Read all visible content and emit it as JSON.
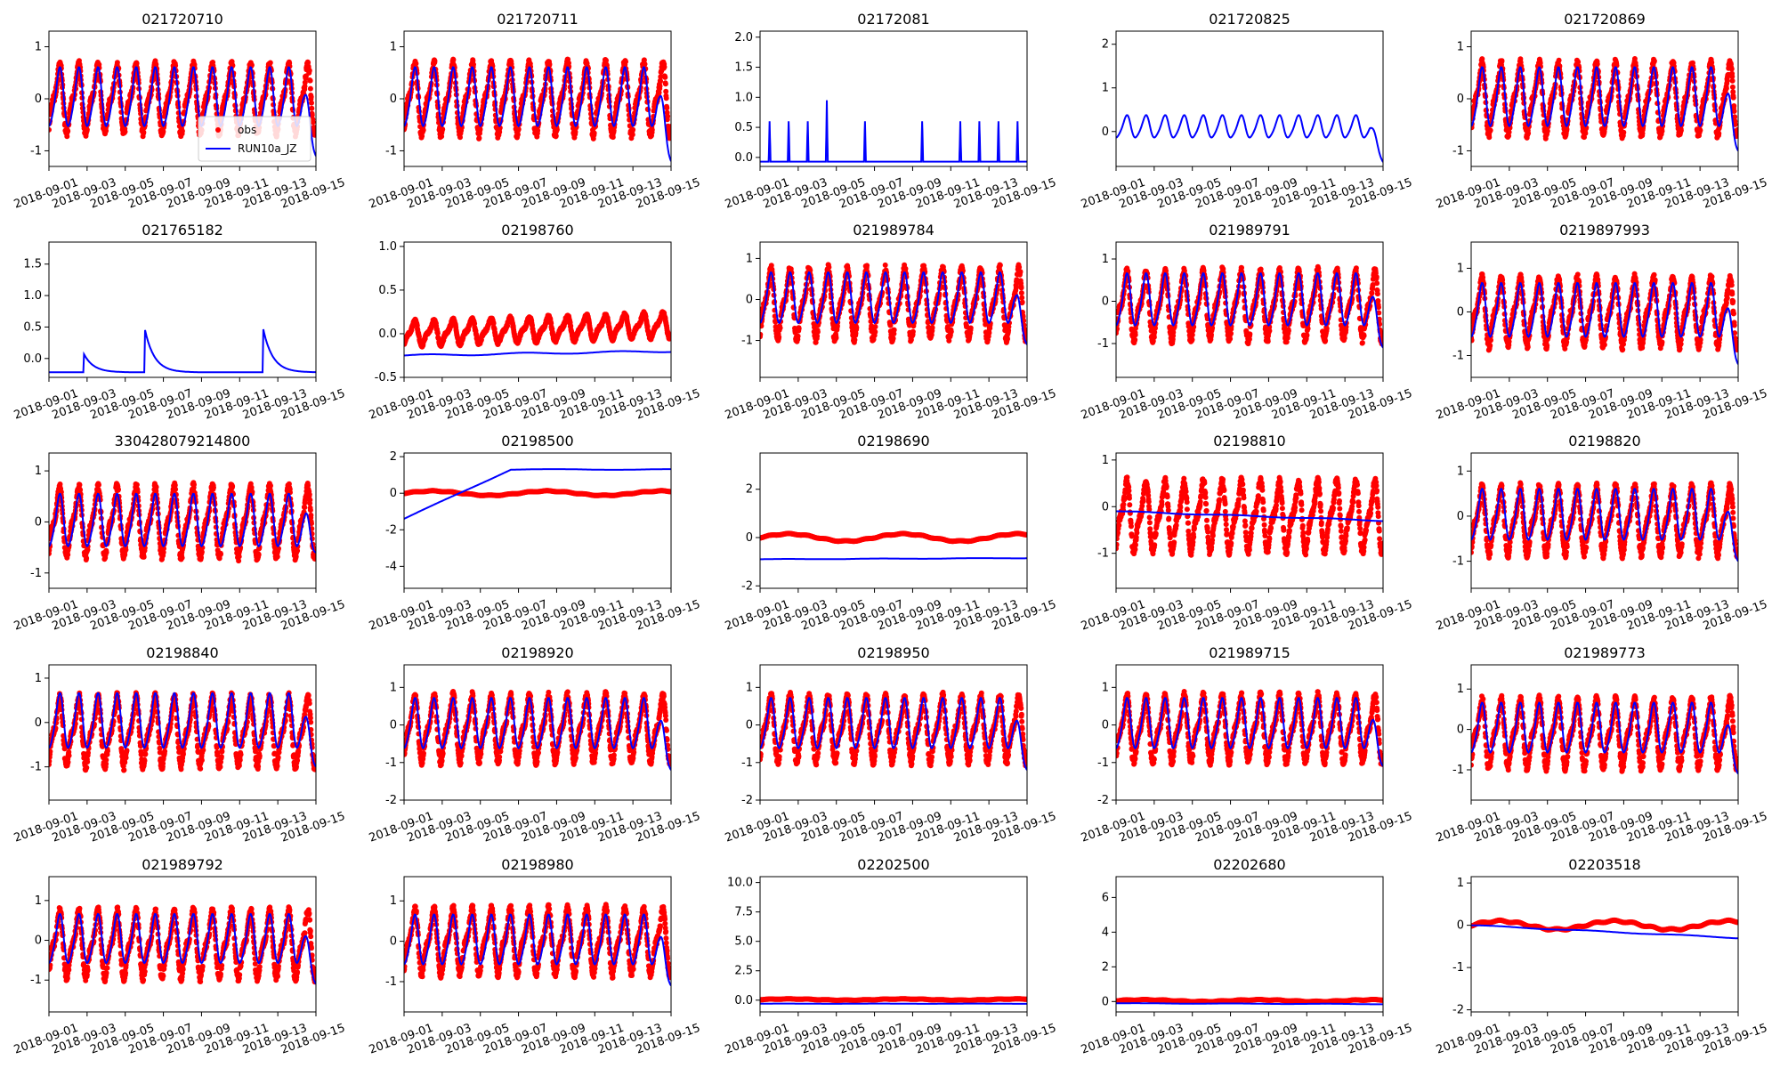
{
  "figure": {
    "x_tick_labels": [
      "2018-09-01",
      "2018-09-03",
      "2018-09-05",
      "2018-09-07",
      "2018-09-09",
      "2018-09-11",
      "2018-09-13",
      "2018-09-15"
    ],
    "x_range": [
      "2018-09-01",
      "2018-09-15"
    ],
    "series_styles": {
      "obs": {
        "color": "#ff0000",
        "kind": "dots"
      },
      "RUN10a_JZ": {
        "color": "#0000ff",
        "kind": "line"
      }
    },
    "legend": {
      "location": "lower-right",
      "in_panel": "021720710",
      "entries": [
        "obs",
        "RUN10a_JZ"
      ]
    }
  },
  "chart_data": [
    {
      "type": "line",
      "title": "021720710",
      "ylim": [
        -1.3,
        1.3
      ],
      "yticks": [
        "-1",
        "0",
        "1"
      ],
      "obs": {
        "mean": 0.0,
        "amp": 1.0,
        "pattern": "diurnal"
      },
      "model": {
        "mean": 0.0,
        "amp": 0.55,
        "end": -1.1,
        "pattern": "diurnal"
      }
    },
    {
      "type": "line",
      "title": "021720711",
      "ylim": [
        -1.3,
        1.3
      ],
      "yticks": [
        "-1",
        "0",
        "1"
      ],
      "obs": {
        "mean": 0.0,
        "amp": 1.05,
        "pattern": "diurnal"
      },
      "model": {
        "mean": 0.0,
        "amp": 0.55,
        "end": -1.2,
        "pattern": "diurnal"
      }
    },
    {
      "type": "line",
      "title": "02172081",
      "ylim": [
        -0.15,
        2.1
      ],
      "yticks": [
        "0.0",
        "0.5",
        "1.0",
        "1.5",
        "2.0"
      ],
      "obs": null,
      "model": {
        "pattern": "spikes",
        "base": -0.07,
        "peak": 0.6
      }
    },
    {
      "type": "line",
      "title": "021720825",
      "ylim": [
        -0.8,
        2.3
      ],
      "yticks": [
        "0",
        "1",
        "2"
      ],
      "obs": null,
      "model": {
        "mean": 0.1,
        "amp": 0.25,
        "end": -0.7,
        "pattern": "diurnal"
      }
    },
    {
      "type": "line",
      "title": "021720869",
      "ylim": [
        -1.3,
        1.3
      ],
      "yticks": [
        "-1",
        "0",
        "1"
      ],
      "obs": {
        "mean": 0.0,
        "amp": 1.05,
        "pattern": "diurnal"
      },
      "model": {
        "mean": 0.0,
        "amp": 0.55,
        "end": -1.0,
        "pattern": "diurnal"
      }
    },
    {
      "type": "line",
      "title": "021765182",
      "ylim": [
        -0.3,
        1.85
      ],
      "yticks": [
        "0.0",
        "0.5",
        "1.0",
        "1.5"
      ],
      "obs": null,
      "model": {
        "pattern": "recession",
        "base": -0.22,
        "peaks": [
          {
            "at": 0.13,
            "v": 0.08
          },
          {
            "at": 0.36,
            "v": 0.45
          },
          {
            "at": 0.8,
            "v": 0.52
          }
        ]
      }
    },
    {
      "type": "line",
      "title": "02198760",
      "ylim": [
        -0.5,
        1.05
      ],
      "yticks": [
        "-0.5",
        "0.0",
        "0.5",
        "1.0"
      ],
      "obs": {
        "mean": 0.0,
        "amp": 0.22,
        "trend": 0.1,
        "pattern": "diurnal"
      },
      "model": {
        "pattern": "flat",
        "start": -0.25,
        "end": -0.2
      }
    },
    {
      "type": "line",
      "title": "021989784",
      "ylim": [
        -1.9,
        1.4
      ],
      "yticks": [
        "-1",
        "0",
        "1"
      ],
      "obs": {
        "mean": -0.1,
        "amp": 1.3,
        "pattern": "diurnal"
      },
      "model": {
        "mean": 0.0,
        "amp": 0.6,
        "end": -1.1,
        "pattern": "diurnal"
      }
    },
    {
      "type": "line",
      "title": "021989791",
      "ylim": [
        -1.8,
        1.4
      ],
      "yticks": [
        "-1",
        "0",
        "1"
      ],
      "obs": {
        "mean": -0.1,
        "amp": 1.25,
        "pattern": "diurnal"
      },
      "model": {
        "mean": 0.0,
        "amp": 0.6,
        "end": -1.1,
        "pattern": "diurnal"
      }
    },
    {
      "type": "line",
      "title": "0219897993",
      "ylim": [
        -1.5,
        1.6
      ],
      "yticks": [
        "-1",
        "0",
        "1"
      ],
      "obs": {
        "mean": 0.0,
        "amp": 1.2,
        "pattern": "diurnal"
      },
      "model": {
        "mean": 0.0,
        "amp": 0.6,
        "end": -1.2,
        "pattern": "diurnal"
      }
    },
    {
      "type": "line",
      "title": "330428079214800",
      "ylim": [
        -1.3,
        1.35
      ],
      "yticks": [
        "-1",
        "0",
        "1"
      ],
      "obs": {
        "mean": 0.0,
        "amp": 1.05,
        "pattern": "diurnal"
      },
      "model": {
        "mean": 0.0,
        "amp": 0.5,
        "end": -0.6,
        "pattern": "diurnal"
      }
    },
    {
      "type": "line",
      "title": "02198500",
      "ylim": [
        -5.2,
        2.2
      ],
      "yticks": [
        "-4",
        "-2",
        "0",
        "2"
      ],
      "obs": {
        "pattern": "smooth",
        "mean": 0.0,
        "amp": 0.12
      },
      "model": {
        "pattern": "rise",
        "start": -1.4,
        "end": 1.3
      }
    },
    {
      "type": "line",
      "title": "02198690",
      "ylim": [
        -2.1,
        3.5
      ],
      "yticks": [
        "-2",
        "0",
        "2"
      ],
      "obs": {
        "pattern": "smooth",
        "mean": 0.0,
        "amp": 0.15
      },
      "model": {
        "pattern": "flat",
        "start": -0.9,
        "end": -0.85
      }
    },
    {
      "type": "line",
      "title": "02198810",
      "ylim": [
        -1.75,
        1.15
      ],
      "yticks": [
        "-1",
        "0",
        "1"
      ],
      "obs": {
        "mean": -0.2,
        "amp": 1.15,
        "pattern": "diurnal"
      },
      "model": {
        "pattern": "flat",
        "start": -0.1,
        "end": -0.3
      }
    },
    {
      "type": "line",
      "title": "02198820",
      "ylim": [
        -1.6,
        1.4
      ],
      "yticks": [
        "-1",
        "0",
        "1"
      ],
      "obs": {
        "mean": -0.1,
        "amp": 1.15,
        "pattern": "diurnal"
      },
      "model": {
        "mean": 0.0,
        "amp": 0.55,
        "end": -1.0,
        "pattern": "diurnal"
      }
    },
    {
      "type": "line",
      "title": "02198840",
      "ylim": [
        -1.75,
        1.3
      ],
      "yticks": [
        "-1",
        "0",
        "1"
      ],
      "obs": {
        "mean": -0.2,
        "amp": 1.2,
        "pattern": "diurnal"
      },
      "model": {
        "mean": 0.0,
        "amp": 0.6,
        "end": -1.0,
        "pattern": "diurnal"
      }
    },
    {
      "type": "line",
      "title": "02198920",
      "ylim": [
        -2.0,
        1.6
      ],
      "yticks": [
        "-2",
        "-1",
        "0",
        "1"
      ],
      "obs": {
        "mean": -0.1,
        "amp": 1.35,
        "pattern": "diurnal"
      },
      "model": {
        "mean": 0.0,
        "amp": 0.65,
        "end": -1.2,
        "pattern": "diurnal"
      }
    },
    {
      "type": "line",
      "title": "02198950",
      "ylim": [
        -2.0,
        1.6
      ],
      "yticks": [
        "-2",
        "-1",
        "0",
        "1"
      ],
      "obs": {
        "mean": -0.1,
        "amp": 1.35,
        "pattern": "diurnal"
      },
      "model": {
        "mean": 0.0,
        "amp": 0.65,
        "end": -1.2,
        "pattern": "diurnal"
      }
    },
    {
      "type": "line",
      "title": "021989715",
      "ylim": [
        -2.0,
        1.6
      ],
      "yticks": [
        "-2",
        "-1",
        "0",
        "1"
      ],
      "obs": {
        "mean": -0.1,
        "amp": 1.35,
        "pattern": "diurnal"
      },
      "model": {
        "mean": 0.0,
        "amp": 0.65,
        "end": -1.1,
        "pattern": "diurnal"
      }
    },
    {
      "type": "line",
      "title": "021989773",
      "ylim": [
        -1.75,
        1.6
      ],
      "yticks": [
        "-1",
        "0",
        "1"
      ],
      "obs": {
        "mean": -0.1,
        "amp": 1.3,
        "pattern": "diurnal"
      },
      "model": {
        "mean": 0.0,
        "amp": 0.6,
        "end": -1.1,
        "pattern": "diurnal"
      }
    },
    {
      "type": "line",
      "title": "021989792",
      "ylim": [
        -1.8,
        1.6
      ],
      "yticks": [
        "-1",
        "0",
        "1"
      ],
      "obs": {
        "mean": -0.1,
        "amp": 1.3,
        "pattern": "diurnal"
      },
      "model": {
        "mean": 0.0,
        "amp": 0.6,
        "end": -1.1,
        "pattern": "diurnal"
      }
    },
    {
      "type": "line",
      "title": "02198980",
      "ylim": [
        -1.75,
        1.6
      ],
      "yticks": [
        "-1",
        "0",
        "1"
      ],
      "obs": {
        "mean": 0.0,
        "amp": 1.25,
        "pattern": "diurnal"
      },
      "model": {
        "mean": 0.0,
        "amp": 0.6,
        "end": -1.1,
        "pattern": "diurnal"
      }
    },
    {
      "type": "line",
      "title": "02202500",
      "ylim": [
        -1.0,
        10.5
      ],
      "yticks": [
        "0.0",
        "2.5",
        "5.0",
        "7.5",
        "10.0"
      ],
      "obs": {
        "pattern": "smooth",
        "mean": 0.05,
        "amp": 0.05
      },
      "model": {
        "pattern": "flat",
        "start": -0.3,
        "end": -0.3
      }
    },
    {
      "type": "line",
      "title": "02202680",
      "ylim": [
        -0.6,
        7.2
      ],
      "yticks": [
        "0",
        "2",
        "4",
        "6"
      ],
      "obs": {
        "pattern": "smooth",
        "mean": 0.05,
        "amp": 0.05
      },
      "model": {
        "pattern": "flat",
        "start": -0.1,
        "end": -0.15
      }
    },
    {
      "type": "line",
      "title": "02203518",
      "ylim": [
        -2.05,
        1.15
      ],
      "yticks": [
        "-2",
        "-1",
        "0",
        "1"
      ],
      "obs": {
        "pattern": "smooth",
        "mean": 0.0,
        "amp": 0.1
      },
      "model": {
        "pattern": "flat",
        "start": 0.0,
        "end": -0.3
      }
    }
  ]
}
